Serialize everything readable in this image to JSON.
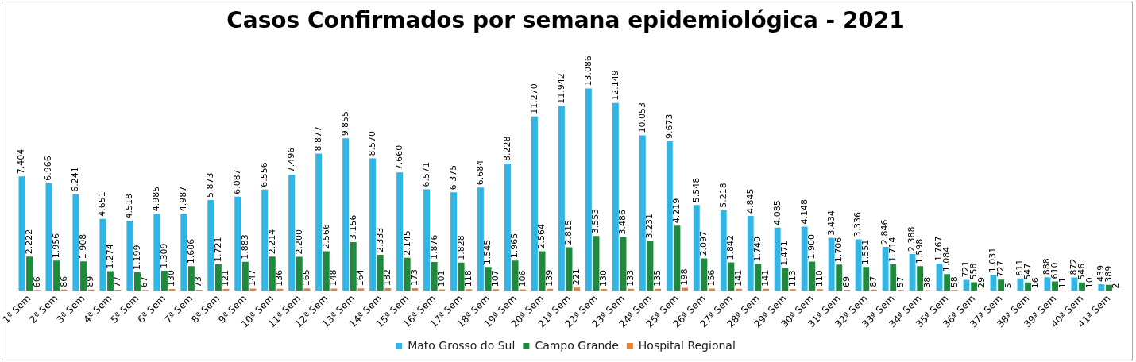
{
  "chart_data": {
    "type": "bar",
    "title": "Casos Confirmados por semana epidemiológica - 2021",
    "categories": [
      "1ª Sem",
      "2ª Sem",
      "3ª Sem",
      "4ª Sem",
      "5ª Sem",
      "6ª Sem",
      "7ª Sem",
      "8ª Sem",
      "9ª Sem",
      "10ª Sem",
      "11ª Sem",
      "12ª Sem",
      "13ª Sem",
      "14ª Sem",
      "15ª Sem",
      "16ª Sem",
      "17ª Sem",
      "18ª Sem",
      "19ª Sem",
      "20ª Sem",
      "21ª Sem",
      "22ª Sem",
      "23ª Sem",
      "24ª Sem",
      "25ª Sem",
      "26ª Sem",
      "27ª Sem",
      "28ª Sem",
      "29ª Sem",
      "30ª Sem",
      "31ª Sem",
      "32ª Sem",
      "33ª Sem",
      "34ª Sem",
      "35ª Sem",
      "36ª Sem",
      "37ª Sem",
      "38ª Sem",
      "39ª Sem",
      "40ª Sem",
      "41ª Sem"
    ],
    "series": [
      {
        "name": "Mato Grosso do Sul",
        "color": "#2fb5e6",
        "values": [
          7404,
          6966,
          6241,
          4651,
          4518,
          4985,
          4987,
          5873,
          6087,
          6556,
          7496,
          8877,
          9855,
          8570,
          7660,
          6571,
          6375,
          6684,
          8228,
          11270,
          11942,
          13086,
          12149,
          10053,
          9673,
          5548,
          5218,
          4845,
          4085,
          4148,
          3434,
          3336,
          2846,
          2388,
          1767,
          721,
          1031,
          811,
          888,
          872,
          439
        ],
        "value_labels": [
          "7.404",
          "6.966",
          "6.241",
          "4.651",
          "4.518",
          "4.985",
          "4.987",
          "5.873",
          "6.087",
          "6.556",
          "7.496",
          "8.877",
          "9.855",
          "8.570",
          "7.660",
          "6.571",
          "6.375",
          "6.684",
          "8.228",
          "11.270",
          "11.942",
          "13.086",
          "12.149",
          "10.053",
          "9.673",
          "5.548",
          "5.218",
          "4.845",
          "4.085",
          "4.148",
          "3.434",
          "3.336",
          "2.846",
          "2.388",
          "1.767",
          "721",
          "1.031",
          "811",
          "888",
          "872",
          "439"
        ]
      },
      {
        "name": "Campo Grande",
        "color": "#1e8a3c",
        "values": [
          2222,
          1956,
          1908,
          1274,
          1199,
          1309,
          1606,
          1721,
          1883,
          2214,
          2200,
          2566,
          3156,
          2333,
          2145,
          1876,
          1828,
          1545,
          1965,
          2564,
          2815,
          3553,
          3486,
          3231,
          4219,
          2097,
          1842,
          1740,
          1471,
          1900,
          1706,
          1551,
          1714,
          1598,
          1084,
          558,
          727,
          547,
          610,
          546,
          389
        ],
        "value_labels": [
          "2.222",
          "1.956",
          "1.908",
          "1.274",
          "1.199",
          "1.309",
          "1.606",
          "1.721",
          "1.883",
          "2.214",
          "2.200",
          "2.566",
          "3.156",
          "2.333",
          "2.145",
          "1.876",
          "1.828",
          "1.545",
          "1.965",
          "2.564",
          "2.815",
          "3.553",
          "3.486",
          "3.231",
          "4.219",
          "2.097",
          "1.842",
          "1.740",
          "1.471",
          "1.900",
          "1.706",
          "1.551",
          "1.714",
          "1.598",
          "1.084",
          "558",
          "727",
          "547",
          "610",
          "546",
          "389"
        ]
      },
      {
        "name": "Hospital Regional",
        "color": "#e8823a",
        "values": [
          66,
          86,
          89,
          77,
          67,
          130,
          73,
          121,
          147,
          136,
          165,
          148,
          164,
          182,
          173,
          101,
          118,
          107,
          106,
          139,
          221,
          130,
          133,
          135,
          198,
          156,
          141,
          141,
          113,
          110,
          69,
          87,
          57,
          38,
          58,
          29,
          5,
          16,
          11,
          10,
          2
        ],
        "value_labels": [
          "66",
          "86",
          "89",
          "77",
          "67",
          "130",
          "73",
          "121",
          "147",
          "136",
          "165",
          "148",
          "164",
          "182",
          "173",
          "101",
          "118",
          "107",
          "106",
          "139",
          "221",
          "130",
          "133",
          "135",
          "198",
          "156",
          "141",
          "141",
          "113",
          "110",
          "69",
          "87",
          "57",
          "38",
          "58",
          "29",
          "5",
          "16",
          "11",
          "10",
          "2"
        ]
      }
    ],
    "tick_labels": "x",
    "legend": "bottom"
  }
}
